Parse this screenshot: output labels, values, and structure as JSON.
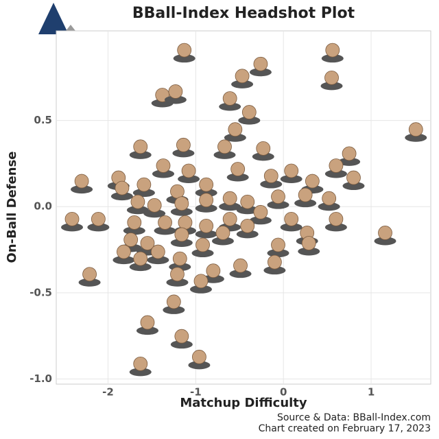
{
  "chart_data": {
    "type": "scatter",
    "title": "BBall-Index Headshot Plot",
    "x_label": "Matchup Difficulty",
    "y_label": "On-Ball Defense",
    "source": "Source & Data: BBall-Index.com",
    "created": "Chart created on February 17, 2023",
    "color": "#c9a27e",
    "grid": true,
    "xlim": [
      -2.59,
      1.68
    ],
    "ylim": [
      -1.03,
      1.02
    ],
    "xticks": [
      -2,
      -1,
      0,
      1
    ],
    "yticks": [
      {
        "value": -1.0,
        "label": "-1.0"
      },
      -0.5,
      {
        "value": 0.0,
        "label": "0.0"
      },
      0.5
    ],
    "x": [
      -1.13,
      0.56,
      -0.26,
      -0.47,
      0.55,
      -1.38,
      -1.23,
      -0.61,
      -0.39,
      -0.55,
      1.51,
      -1.63,
      -1.14,
      -0.67,
      -0.23,
      0.75,
      -1.37,
      -1.08,
      -0.52,
      -0.14,
      0.09,
      0.6,
      -2.3,
      -1.88,
      -1.84,
      -1.59,
      -1.21,
      -0.88,
      0.33,
      0.8,
      -1.66,
      -1.47,
      -1.16,
      -0.88,
      -0.61,
      -0.41,
      -0.06,
      0.25,
      0.52,
      -2.41,
      -2.11,
      -1.7,
      -1.35,
      -1.12,
      -0.88,
      -0.61,
      -0.26,
      0.09,
      0.6,
      1.16,
      -1.74,
      -1.55,
      -1.16,
      -0.92,
      -0.69,
      -0.41,
      0.27,
      -1.82,
      -1.43,
      -0.06,
      0.29,
      -1.63,
      -1.18,
      -0.49,
      -0.1,
      -2.21,
      -1.21,
      -0.8,
      -0.94,
      -1.25,
      -1.55,
      -1.16,
      -1.63,
      -0.96
    ],
    "values": [
      0.9,
      0.9,
      0.82,
      0.75,
      0.74,
      0.64,
      0.66,
      0.62,
      0.54,
      0.44,
      0.44,
      0.34,
      0.35,
      0.34,
      0.33,
      0.3,
      0.23,
      0.2,
      0.21,
      0.17,
      0.2,
      0.23,
      0.14,
      0.16,
      0.1,
      0.12,
      0.08,
      0.12,
      0.14,
      0.16,
      0.02,
      0.0,
      0.01,
      0.03,
      0.04,
      0.02,
      0.05,
      0.06,
      0.04,
      -0.08,
      -0.08,
      -0.1,
      -0.1,
      -0.1,
      -0.12,
      -0.08,
      -0.04,
      -0.08,
      -0.08,
      -0.16,
      -0.2,
      -0.22,
      -0.17,
      -0.23,
      -0.16,
      -0.12,
      -0.16,
      -0.27,
      -0.27,
      -0.23,
      -0.22,
      -0.31,
      -0.31,
      -0.35,
      -0.33,
      -0.4,
      -0.4,
      -0.38,
      -0.44,
      -0.56,
      -0.68,
      -0.76,
      -0.92,
      -0.88
    ]
  }
}
